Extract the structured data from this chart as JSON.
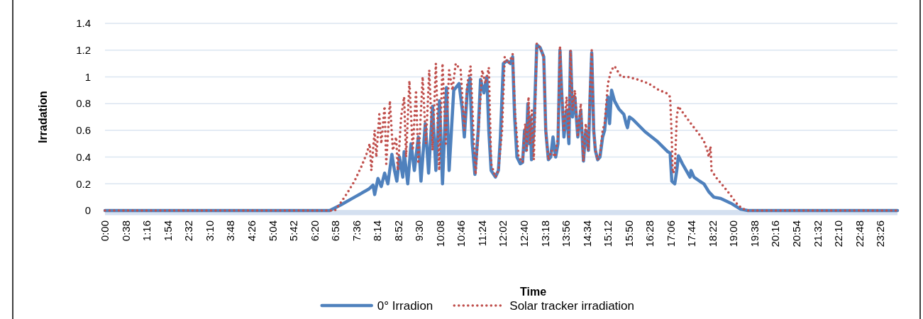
{
  "chart_data": {
    "type": "line",
    "xlabel": "Time",
    "ylabel": "Irradation",
    "xlim": [
      0,
      23.95
    ],
    "ylim": [
      0,
      1.4
    ],
    "yticks": [
      0,
      0.2,
      0.4,
      0.6,
      0.8,
      1,
      1.2,
      1.4
    ],
    "xticks": [
      {
        "value": 0,
        "label": "0:00"
      },
      {
        "value": 0.6333,
        "label": "0:38"
      },
      {
        "value": 1.2667,
        "label": "1:16"
      },
      {
        "value": 1.9,
        "label": "1:54"
      },
      {
        "value": 2.5333,
        "label": "2:32"
      },
      {
        "value": 3.1667,
        "label": "3:10"
      },
      {
        "value": 3.8,
        "label": "3:48"
      },
      {
        "value": 4.4333,
        "label": "4:26"
      },
      {
        "value": 5.0667,
        "label": "5:04"
      },
      {
        "value": 5.7,
        "label": "5:42"
      },
      {
        "value": 6.3333,
        "label": "6:20"
      },
      {
        "value": 6.9667,
        "label": "6:58"
      },
      {
        "value": 7.6,
        "label": "7:36"
      },
      {
        "value": 8.2333,
        "label": "8:14"
      },
      {
        "value": 8.8667,
        "label": "8:52"
      },
      {
        "value": 9.5,
        "label": "9:30"
      },
      {
        "value": 10.1333,
        "label": "10:08"
      },
      {
        "value": 10.7667,
        "label": "10:46"
      },
      {
        "value": 11.4,
        "label": "11:24"
      },
      {
        "value": 12.0333,
        "label": "12:02"
      },
      {
        "value": 12.6667,
        "label": "12:40"
      },
      {
        "value": 13.3,
        "label": "13:18"
      },
      {
        "value": 13.9333,
        "label": "13:56"
      },
      {
        "value": 14.5667,
        "label": "14:34"
      },
      {
        "value": 15.2,
        "label": "15:12"
      },
      {
        "value": 15.8333,
        "label": "15:50"
      },
      {
        "value": 16.4667,
        "label": "16:28"
      },
      {
        "value": 17.1,
        "label": "17:06"
      },
      {
        "value": 17.7333,
        "label": "17:44"
      },
      {
        "value": 18.3667,
        "label": "18:22"
      },
      {
        "value": 19,
        "label": "19:00"
      },
      {
        "value": 19.6333,
        "label": "19:38"
      },
      {
        "value": 20.2667,
        "label": "20:16"
      },
      {
        "value": 20.9,
        "label": "20:54"
      },
      {
        "value": 21.5333,
        "label": "21:32"
      },
      {
        "value": 22.1667,
        "label": "22:10"
      },
      {
        "value": 22.8,
        "label": "22:48"
      },
      {
        "value": 23.4333,
        "label": "23:26"
      }
    ],
    "grid": "y",
    "legend": "bottom",
    "series": [
      {
        "name": "0° Irradion",
        "color": "#4f81bd",
        "line_style": "solid",
        "x": [
          0,
          6.79,
          7.11,
          7.54,
          7.97,
          8.1,
          8.15,
          8.25,
          8.35,
          8.45,
          8.55,
          8.67,
          8.75,
          8.82,
          8.9,
          9,
          9.04,
          9.15,
          9.25,
          9.35,
          9.47,
          9.55,
          9.68,
          9.78,
          9.9,
          10,
          10.11,
          10.2,
          10.32,
          10.4,
          10.54,
          10.7,
          10.8,
          10.86,
          10.95,
          11.03,
          11.1,
          11.18,
          11.28,
          11.35,
          11.45,
          11.54,
          11.6,
          11.67,
          11.8,
          11.89,
          11.95,
          12.04,
          12.15,
          12.25,
          12.32,
          12.38,
          12.45,
          12.55,
          12.62,
          12.68,
          12.73,
          12.78,
          12.82,
          12.85,
          12.89,
          12.96,
          13.05,
          13.15,
          13.26,
          13.32,
          13.4,
          13.47,
          13.54,
          13.62,
          13.69,
          13.75,
          13.8,
          13.87,
          13.95,
          14.02,
          14.07,
          14.13,
          14.2,
          14.29,
          14.38,
          14.46,
          14.53,
          14.61,
          14.66,
          14.71,
          14.77,
          14.82,
          14.89,
          14.96,
          15.04,
          15.1,
          15.2,
          15.25,
          15.31,
          15.4,
          15.53,
          15.68,
          15.75,
          15.79,
          15.85,
          15.96,
          16.32,
          16.68,
          17.01,
          17.08,
          17.13,
          17.22,
          17.28,
          17.33,
          17.45,
          17.61,
          17.68,
          17.71,
          17.8,
          17.97,
          18.1,
          18.25,
          18.4,
          18.61,
          18.95,
          19.21,
          19.43,
          23.95
        ],
        "values": [
          0,
          0,
          0.04,
          0.1,
          0.16,
          0.19,
          0.12,
          0.24,
          0.18,
          0.28,
          0.2,
          0.42,
          0.3,
          0.22,
          0.4,
          0.25,
          0.44,
          0.2,
          0.5,
          0.3,
          0.55,
          0.22,
          0.65,
          0.28,
          0.78,
          0.3,
          0.82,
          0.2,
          0.92,
          0.3,
          0.9,
          0.95,
          0.75,
          0.55,
          0.9,
          0.99,
          0.5,
          0.27,
          0.6,
          0.98,
          0.88,
          1,
          0.6,
          0.3,
          0.25,
          0.3,
          0.55,
          1.1,
          1.12,
          1.1,
          1.15,
          0.7,
          0.4,
          0.35,
          0.36,
          0.6,
          0.45,
          0.8,
          0.5,
          0.7,
          0.38,
          0.6,
          1.24,
          1.22,
          1.15,
          0.6,
          0.38,
          0.4,
          0.55,
          0.4,
          0.5,
          1.2,
          0.9,
          0.55,
          0.75,
          0.5,
          1.19,
          0.7,
          0.85,
          0.55,
          0.75,
          0.37,
          0.6,
          0.45,
          0.85,
          1.18,
          0.6,
          0.45,
          0.38,
          0.4,
          0.55,
          0.6,
          0.85,
          0.65,
          0.9,
          0.82,
          0.76,
          0.72,
          0.65,
          0.62,
          0.7,
          0.68,
          0.59,
          0.52,
          0.44,
          0.43,
          0.22,
          0.2,
          0.3,
          0.41,
          0.35,
          0.28,
          0.25,
          0.3,
          0.25,
          0.22,
          0.2,
          0.14,
          0.1,
          0.09,
          0.05,
          0.01,
          0,
          0
        ]
      },
      {
        "name": "Solar tracker irradiation",
        "color": "#c0504d",
        "line_style": "dotted",
        "x": [
          0,
          6.95,
          7.1,
          7.32,
          7.54,
          7.75,
          7.9,
          8,
          8.05,
          8.15,
          8.2,
          8.29,
          8.35,
          8.45,
          8.5,
          8.61,
          8.7,
          8.8,
          8.85,
          8.95,
          9.04,
          9.1,
          9.2,
          9.3,
          9.4,
          9.47,
          9.6,
          9.7,
          9.8,
          9.9,
          10,
          10.1,
          10.2,
          10.3,
          10.4,
          10.5,
          10.6,
          10.75,
          10.86,
          10.95,
          11.05,
          11.15,
          11.2,
          11.3,
          11.4,
          11.5,
          11.6,
          11.67,
          11.8,
          11.89,
          12,
          12.08,
          12.2,
          12.32,
          12.4,
          12.5,
          12.62,
          12.7,
          12.75,
          12.8,
          12.85,
          12.9,
          12.96,
          13.05,
          13.15,
          13.26,
          13.32,
          13.4,
          13.5,
          13.6,
          13.69,
          13.75,
          13.8,
          13.87,
          13.95,
          14.02,
          14.07,
          14.13,
          14.2,
          14.29,
          14.38,
          14.46,
          14.53,
          14.61,
          14.66,
          14.71,
          14.77,
          14.82,
          14.89,
          14.96,
          15.04,
          15.1,
          15.2,
          15.3,
          15.4,
          15.6,
          15.8,
          16.1,
          16.43,
          16.75,
          16.96,
          17.08,
          17.12,
          17.16,
          17.22,
          17.28,
          17.33,
          17.5,
          17.71,
          17.93,
          18.1,
          18.2,
          18.25,
          18.3,
          18.33,
          18.46,
          18.63,
          18.89,
          19.1,
          19.23,
          19.4,
          23.95
        ],
        "values": [
          0,
          0,
          0.05,
          0.13,
          0.22,
          0.33,
          0.42,
          0.5,
          0.3,
          0.6,
          0.4,
          0.72,
          0.5,
          0.78,
          0.35,
          0.82,
          0.45,
          0.55,
          0.3,
          0.7,
          0.85,
          0.4,
          0.97,
          0.45,
          0.9,
          0.35,
          1,
          0.5,
          1.05,
          0.45,
          1.1,
          0.3,
          1.1,
          0.5,
          1.05,
          0.9,
          1.1,
          1.05,
          0.6,
          0.95,
          1.08,
          0.5,
          0.27,
          0.65,
          1.05,
          0.95,
          1.07,
          0.35,
          0.25,
          0.3,
          0.6,
          1.15,
          1.1,
          1.17,
          0.7,
          0.4,
          0.36,
          0.65,
          0.45,
          0.85,
          0.5,
          0.75,
          0.38,
          1.25,
          1.22,
          1.15,
          0.6,
          0.38,
          0.45,
          0.4,
          0.55,
          1.23,
          0.9,
          0.6,
          0.85,
          0.55,
          1.2,
          0.75,
          0.9,
          0.55,
          0.8,
          0.37,
          0.65,
          0.45,
          0.9,
          1.2,
          0.6,
          0.45,
          0.38,
          0.42,
          0.6,
          0.65,
          0.95,
          1.05,
          1.08,
          1,
          1,
          0.98,
          0.95,
          0.9,
          0.88,
          0.85,
          0.6,
          0.28,
          0.3,
          0.7,
          0.78,
          0.72,
          0.65,
          0.58,
          0.52,
          0.45,
          0.4,
          0.48,
          0.3,
          0.25,
          0.2,
          0.12,
          0.05,
          0.02,
          0,
          0
        ]
      }
    ]
  }
}
